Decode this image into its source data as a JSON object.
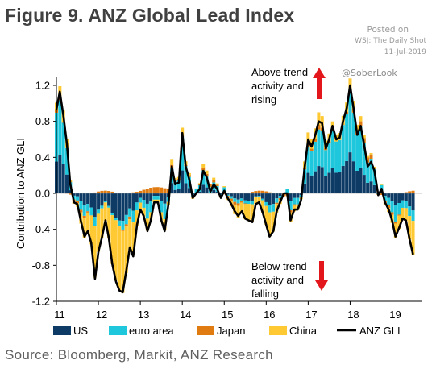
{
  "header": {
    "title": "Figure 9. ANZ Global Lead Index",
    "posted_on": "Posted on",
    "posted_source": "WSJ: The Daily Shot",
    "posted_date": "11-Jul-2019",
    "handle": "@SoberLook"
  },
  "footer": {
    "source": "Source: Bloomberg, Markit, ANZ Research"
  },
  "annotations": {
    "above": [
      "Above trend",
      "activity and",
      "rising"
    ],
    "below": [
      "Below trend",
      "activity and",
      "falling"
    ]
  },
  "colors": {
    "US": "#0d3b66",
    "euro area": "#1ec7db",
    "Japan": "#e07b12",
    "China": "#ffc933",
    "ANZ GLI": "#000000",
    "arrow": "#e2161b"
  },
  "chart_data": {
    "type": "bar",
    "stacked": true,
    "title": "Figure 9. ANZ Global Lead Index",
    "ylabel": "Contribution to ANZ GLI",
    "xlabel": "",
    "ylim": [
      -1.2,
      1.3
    ],
    "yticks": [
      -1.2,
      -0.8,
      -0.4,
      0.0,
      0.4,
      0.8,
      1.2
    ],
    "ytick_labels": [
      "-1.2",
      "-0.8",
      "-0.4",
      "0.0",
      "0.4",
      "0.8",
      "1.2"
    ],
    "xlim": [
      2011.0,
      2019.72
    ],
    "xticks": [
      2011,
      2012,
      2013,
      2014,
      2015,
      2016,
      2017,
      2018,
      2019
    ],
    "xtick_labels": [
      "11",
      "12",
      "13",
      "14",
      "15",
      "16",
      "17",
      "18",
      "19"
    ],
    "legend": [
      "US",
      "euro area",
      "Japan",
      "China",
      "ANZ GLI"
    ],
    "legend_position": "bottom",
    "gli_knots": [
      [
        2011.0,
        0.93
      ],
      [
        2011.08,
        1.13
      ],
      [
        2011.17,
        0.85
      ],
      [
        2011.25,
        0.55
      ],
      [
        2011.33,
        0.1
      ],
      [
        2011.42,
        -0.1
      ],
      [
        2011.5,
        -0.12
      ],
      [
        2011.58,
        -0.3
      ],
      [
        2011.67,
        -0.48
      ],
      [
        2011.75,
        -0.42
      ],
      [
        2011.83,
        -0.55
      ],
      [
        2011.92,
        -0.95
      ],
      [
        2012.0,
        -0.65
      ],
      [
        2012.08,
        -0.5
      ],
      [
        2012.17,
        -0.3
      ],
      [
        2012.25,
        -0.5
      ],
      [
        2012.33,
        -0.78
      ],
      [
        2012.42,
        -0.98
      ],
      [
        2012.5,
        -1.08
      ],
      [
        2012.58,
        -1.1
      ],
      [
        2012.67,
        -0.85
      ],
      [
        2012.75,
        -0.6
      ],
      [
        2012.83,
        -0.7
      ],
      [
        2012.92,
        -0.35
      ],
      [
        2013.0,
        -0.18
      ],
      [
        2013.08,
        -0.25
      ],
      [
        2013.17,
        -0.42
      ],
      [
        2013.25,
        -0.3
      ],
      [
        2013.33,
        -0.1
      ],
      [
        2013.42,
        -0.1
      ],
      [
        2013.5,
        -0.3
      ],
      [
        2013.58,
        -0.42
      ],
      [
        2013.67,
        -0.12
      ],
      [
        2013.75,
        0.3
      ],
      [
        2013.83,
        0.1
      ],
      [
        2013.92,
        0.12
      ],
      [
        2014.0,
        0.67
      ],
      [
        2014.08,
        0.3
      ],
      [
        2014.17,
        0.15
      ],
      [
        2014.25,
        -0.05
      ],
      [
        2014.33,
        0.0
      ],
      [
        2014.42,
        0.05
      ],
      [
        2014.5,
        0.25
      ],
      [
        2014.58,
        0.18
      ],
      [
        2014.67,
        0.02
      ],
      [
        2014.75,
        0.1
      ],
      [
        2014.83,
        0.05
      ],
      [
        2014.92,
        -0.05
      ],
      [
        2015.0,
        0.03
      ],
      [
        2015.08,
        -0.05
      ],
      [
        2015.17,
        -0.12
      ],
      [
        2015.25,
        -0.2
      ],
      [
        2015.33,
        -0.25
      ],
      [
        2015.42,
        -0.2
      ],
      [
        2015.5,
        -0.28
      ],
      [
        2015.58,
        -0.3
      ],
      [
        2015.67,
        -0.32
      ],
      [
        2015.75,
        -0.12
      ],
      [
        2015.83,
        -0.1
      ],
      [
        2015.92,
        -0.22
      ],
      [
        2016.0,
        -0.35
      ],
      [
        2016.08,
        -0.48
      ],
      [
        2016.17,
        -0.42
      ],
      [
        2016.25,
        -0.2
      ],
      [
        2016.33,
        -0.1
      ],
      [
        2016.42,
        0.0
      ],
      [
        2016.5,
        0.0
      ],
      [
        2016.58,
        -0.3
      ],
      [
        2016.67,
        -0.18
      ],
      [
        2016.75,
        -0.18
      ],
      [
        2016.83,
        -0.08
      ],
      [
        2016.92,
        0.3
      ],
      [
        2017.0,
        0.6
      ],
      [
        2017.08,
        0.52
      ],
      [
        2017.17,
        0.65
      ],
      [
        2017.25,
        0.8
      ],
      [
        2017.33,
        0.78
      ],
      [
        2017.42,
        0.5
      ],
      [
        2017.5,
        0.6
      ],
      [
        2017.58,
        0.75
      ],
      [
        2017.67,
        0.6
      ],
      [
        2017.75,
        0.62
      ],
      [
        2017.83,
        0.8
      ],
      [
        2017.92,
        0.95
      ],
      [
        2018.0,
        1.2
      ],
      [
        2018.08,
        0.95
      ],
      [
        2018.17,
        0.65
      ],
      [
        2018.25,
        0.75
      ],
      [
        2018.33,
        0.55
      ],
      [
        2018.42,
        0.3
      ],
      [
        2018.5,
        0.35
      ],
      [
        2018.58,
        0.25
      ],
      [
        2018.67,
        -0.02
      ],
      [
        2018.75,
        0.05
      ],
      [
        2018.83,
        -0.1
      ],
      [
        2018.92,
        -0.18
      ],
      [
        2019.0,
        -0.3
      ],
      [
        2019.08,
        -0.48
      ],
      [
        2019.17,
        -0.38
      ],
      [
        2019.25,
        -0.28
      ],
      [
        2019.33,
        -0.3
      ],
      [
        2019.42,
        -0.52
      ],
      [
        2019.5,
        -0.68
      ]
    ],
    "china_share_knots": [
      [
        2011.0,
        0.1
      ],
      [
        2011.4,
        0.25
      ],
      [
        2011.7,
        0.5
      ],
      [
        2012.0,
        0.65
      ],
      [
        2012.4,
        0.7
      ],
      [
        2012.8,
        0.55
      ],
      [
        2013.2,
        0.3
      ],
      [
        2013.6,
        0.3
      ],
      [
        2014.0,
        0.15
      ],
      [
        2014.5,
        0.2
      ],
      [
        2015.0,
        0.45
      ],
      [
        2015.5,
        0.6
      ],
      [
        2015.9,
        0.65
      ],
      [
        2016.3,
        0.45
      ],
      [
        2016.8,
        0.3
      ],
      [
        2017.2,
        0.2
      ],
      [
        2017.6,
        0.15
      ],
      [
        2018.0,
        0.12
      ],
      [
        2018.5,
        0.05
      ],
      [
        2019.0,
        0.3
      ],
      [
        2019.5,
        0.55
      ]
    ]
  }
}
